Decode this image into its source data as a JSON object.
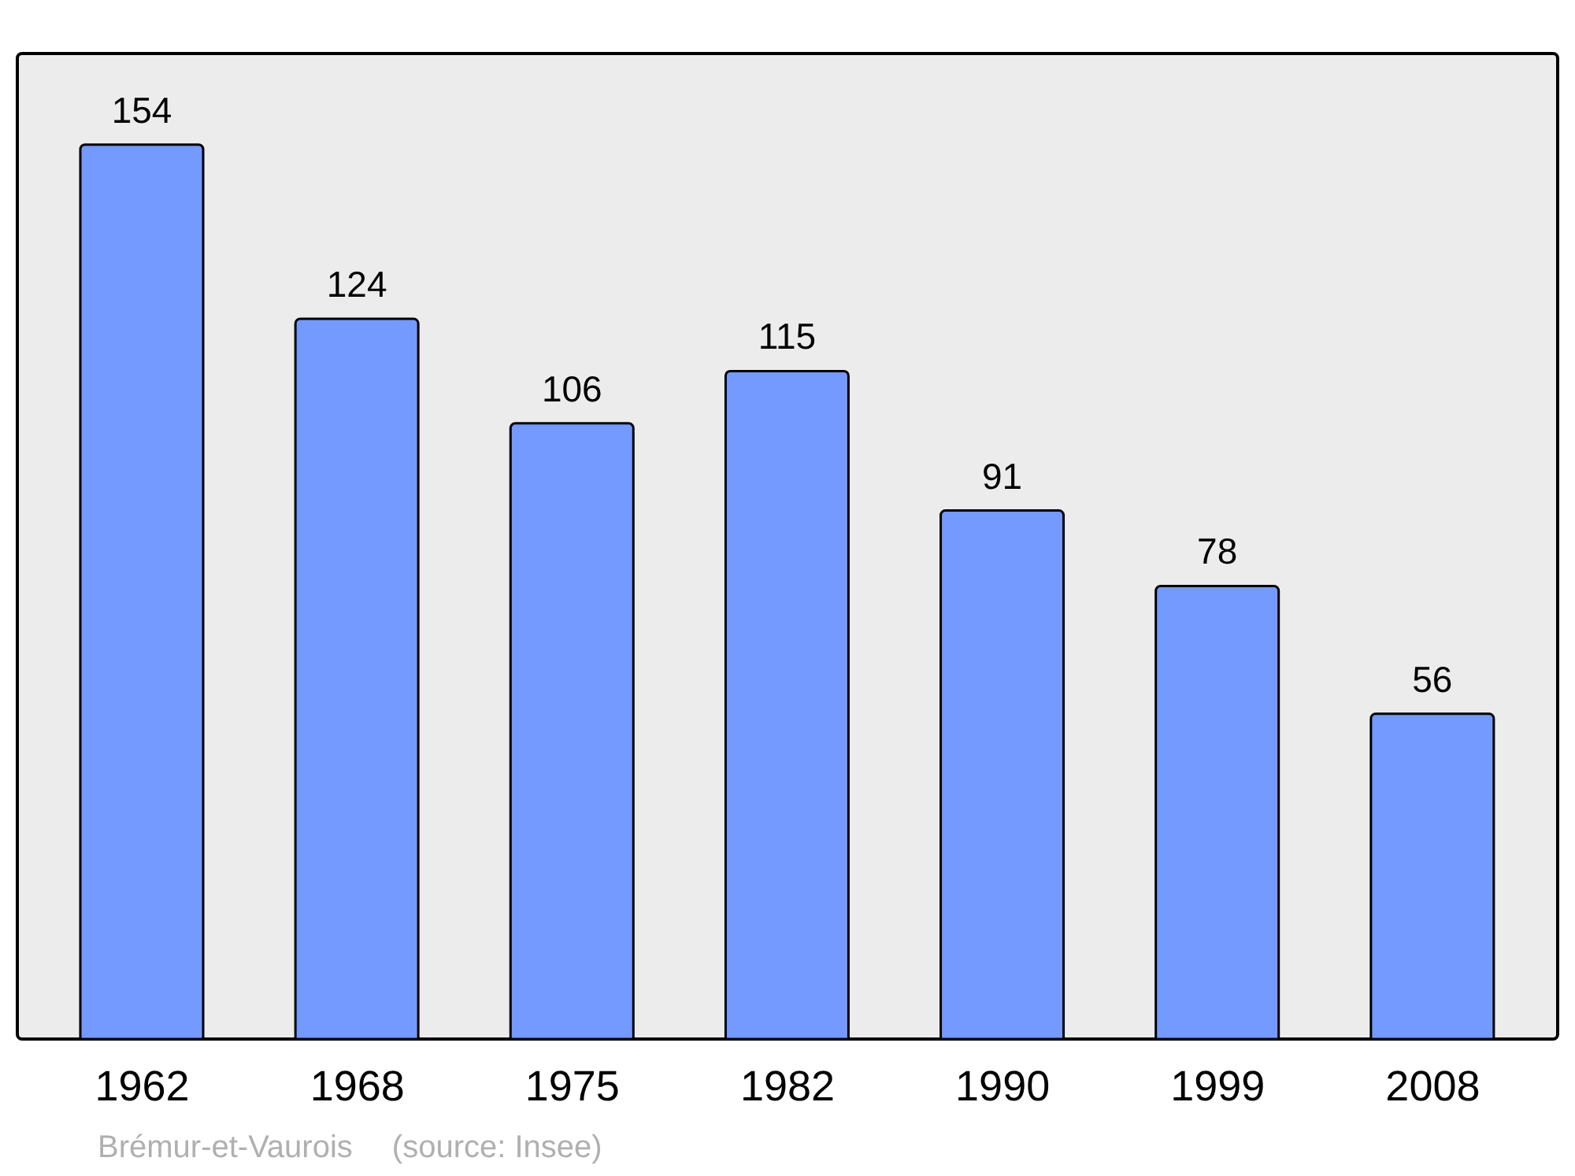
{
  "chart_data": {
    "type": "bar",
    "categories": [
      "1962",
      "1968",
      "1975",
      "1982",
      "1990",
      "1999",
      "2008"
    ],
    "values": [
      154,
      124,
      106,
      115,
      91,
      78,
      56
    ],
    "color": "#7499ff",
    "data_labels": true,
    "annotations": [
      "Brémur-et-Vaurois",
      "(source: Insee)"
    ]
  }
}
